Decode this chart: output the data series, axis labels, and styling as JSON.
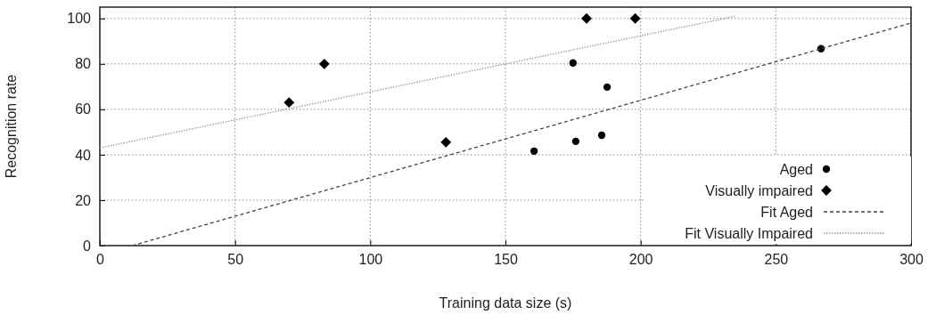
{
  "chart_data": {
    "type": "scatter",
    "xlabel": "Training data size (s)",
    "ylabel": "Recognition rate",
    "xlim": [
      0,
      300
    ],
    "ylim": [
      0,
      105
    ],
    "xticks": [
      0,
      50,
      100,
      150,
      200,
      250,
      300
    ],
    "yticks": [
      0,
      20,
      40,
      60,
      80,
      100
    ],
    "grid": true,
    "legend": "bottom right",
    "series": [
      {
        "name": "Aged",
        "type": "scatter",
        "marker": "circle",
        "color": "#000000",
        "x": [
          160.6,
          176,
          185.6,
          187.6,
          175,
          266.7
        ],
        "values": [
          41.6,
          45.9,
          48.6,
          69.8,
          80.4,
          86.7
        ]
      },
      {
        "name": "Visually impaired",
        "type": "scatter",
        "marker": "diamond",
        "color": "#000000",
        "x": [
          70,
          83,
          128,
          180,
          198
        ],
        "values": [
          63,
          80,
          45.5,
          100,
          100
        ]
      },
      {
        "name": "Fit Aged",
        "type": "line",
        "line_style": "dashed",
        "color": "#444444",
        "x": [
          12,
          300
        ],
        "values": [
          0,
          98
        ]
      },
      {
        "name": "Fit Visually Impaired",
        "type": "line",
        "line_style": "dotted",
        "color": "#999999",
        "x": [
          0,
          235
        ],
        "values": [
          43,
          101
        ]
      }
    ]
  }
}
